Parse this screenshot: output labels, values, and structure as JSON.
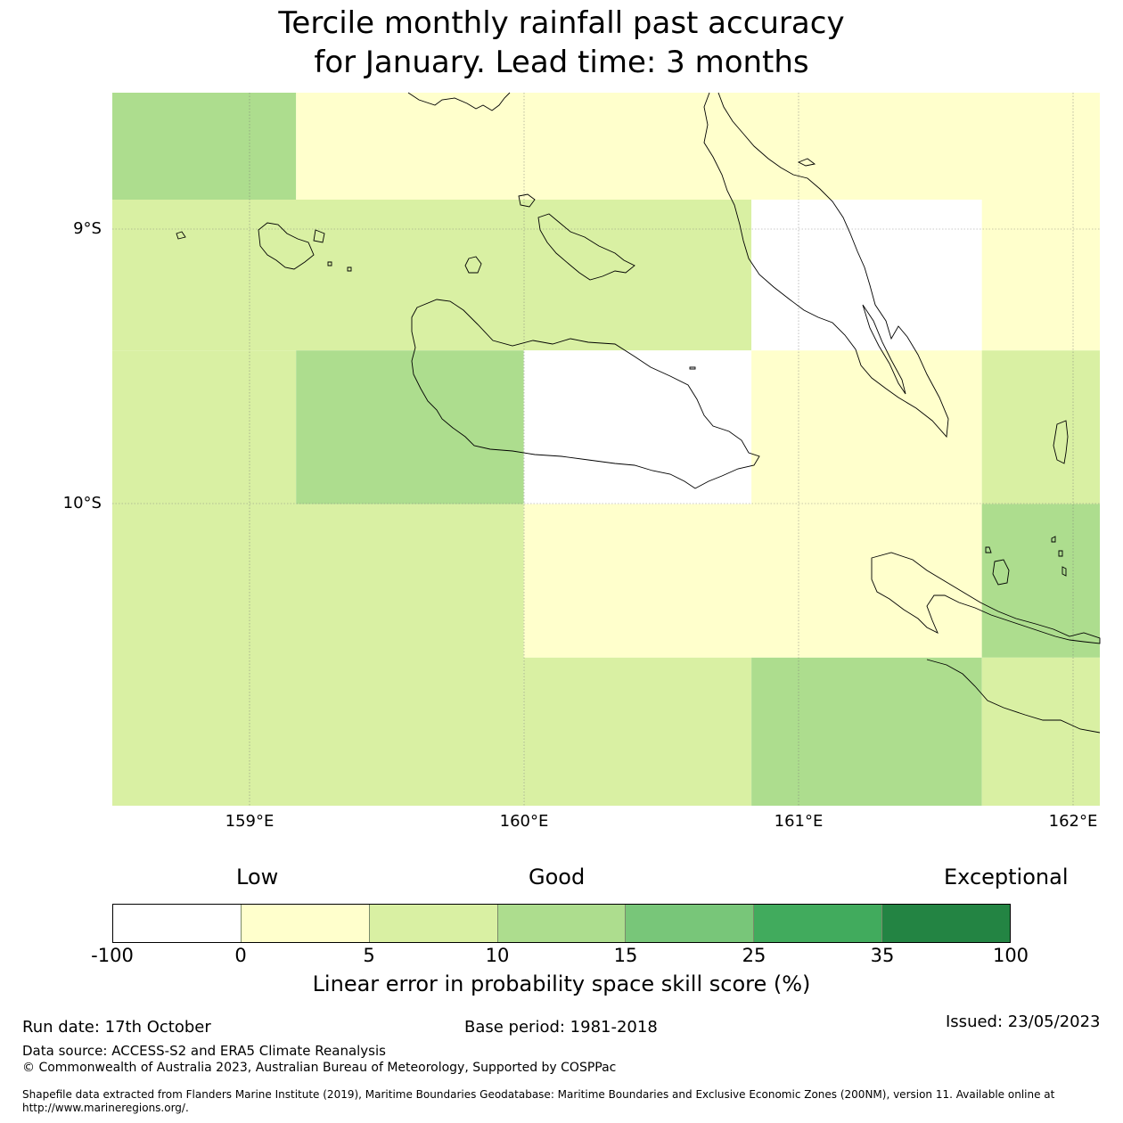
{
  "title": {
    "line1": "Tercile monthly rainfall past accuracy",
    "line2": "for January. Lead time: 3 months"
  },
  "map": {
    "lon_labels": [
      "159°E",
      "160°E",
      "161°E",
      "162°E"
    ],
    "lat_labels": [
      "9°S",
      "10°S"
    ],
    "category_colors": [
      "#ffffff",
      "#ffffcc",
      "#d9f0a3",
      "#addd8e",
      "#78c679",
      "#41ab5d",
      "#238443"
    ],
    "grid_cells": [
      {
        "lon": [
          158.5,
          159.17
        ],
        "lat": [
          -8.5,
          -8.89
        ],
        "category": 3
      },
      {
        "lon": [
          159.17,
          162.1
        ],
        "lat": [
          -8.5,
          -8.89
        ],
        "category": 1
      },
      {
        "lon": [
          158.5,
          160.83
        ],
        "lat": [
          -8.89,
          -9.44
        ],
        "category": 2
      },
      {
        "lon": [
          160.83,
          161.67
        ],
        "lat": [
          -8.89,
          -9.44
        ],
        "category": 0
      },
      {
        "lon": [
          161.67,
          162.1
        ],
        "lat": [
          -8.89,
          -9.44
        ],
        "category": 1
      },
      {
        "lon": [
          158.5,
          159.17
        ],
        "lat": [
          -9.44,
          -10.0
        ],
        "category": 2
      },
      {
        "lon": [
          159.17,
          160.0
        ],
        "lat": [
          -9.44,
          -10.0
        ],
        "category": 3
      },
      {
        "lon": [
          160.0,
          160.83
        ],
        "lat": [
          -9.44,
          -10.0
        ],
        "category": 0
      },
      {
        "lon": [
          160.83,
          161.67
        ],
        "lat": [
          -9.44,
          -10.0
        ],
        "category": 1
      },
      {
        "lon": [
          161.67,
          162.1
        ],
        "lat": [
          -9.44,
          -10.0
        ],
        "category": 2
      },
      {
        "lon": [
          158.5,
          160.0
        ],
        "lat": [
          -10.0,
          -11.1
        ],
        "category": 2
      },
      {
        "lon": [
          160.0,
          161.67
        ],
        "lat": [
          -10.0,
          -10.56
        ],
        "category": 1
      },
      {
        "lon": [
          161.67,
          162.1
        ],
        "lat": [
          -10.0,
          -10.56
        ],
        "category": 3
      },
      {
        "lon": [
          160.0,
          160.83
        ],
        "lat": [
          -10.56,
          -11.1
        ],
        "category": 2
      },
      {
        "lon": [
          160.83,
          161.67
        ],
        "lat": [
          -10.56,
          -11.1
        ],
        "category": 3
      },
      {
        "lon": [
          161.67,
          162.1
        ],
        "lat": [
          -10.56,
          -11.1
        ],
        "category": 2
      }
    ]
  },
  "colorbar": {
    "label_low": "Low",
    "label_good": "Good",
    "label_exceptional": "Exceptional",
    "ticks": [
      "-100",
      "0",
      "5",
      "10",
      "15",
      "25",
      "35",
      "100"
    ],
    "colors": [
      "#ffffff",
      "#ffffcc",
      "#d9f0a3",
      "#addd8e",
      "#78c679",
      "#41ab5d",
      "#238443"
    ],
    "title": "Linear error in probability space skill score (%)"
  },
  "footer": {
    "run_date": "Run date: 17th October",
    "base_period": "Base period: 1981-2018",
    "issued": "Issued: 23/05/2023",
    "data_source": "Data source: ACCESS-S2 and ERA5 Climate Reanalysis",
    "copyright": "© Commonwealth of Australia 2023, Australian Bureau of Meteorology, Supported by COSPPac",
    "shapefile_line1": "Shapefile data extracted from Flanders Marine Institute (2019), Maritime Boundaries Geodatabase: Maritime Boundaries and Exclusive Economic Zones (200NM), version 11. Available online at",
    "shapefile_line2": "http://www.marineregions.org/."
  }
}
